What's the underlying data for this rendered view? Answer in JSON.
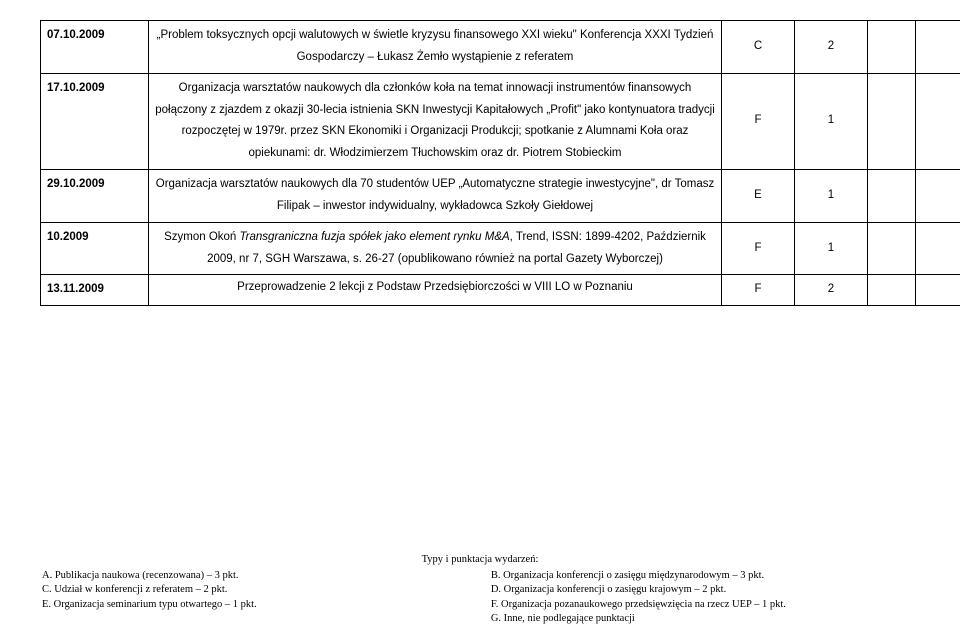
{
  "rows": [
    {
      "date": "07.10.2009",
      "desc": "„Problem toksycznych opcji walutowych w świetle kryzysu finansowego XXI wieku\" Konferencja XXXI Tydzień Gospodarczy – Łukasz Żemło wystąpienie z referatem",
      "code": "C",
      "pts": "2"
    },
    {
      "date": "17.10.2009",
      "desc": "Organizacja warsztatów naukowych dla członków koła na temat innowacji instrumentów finansowych połączony z zjazdem z okazji 30-lecia istnienia SKN Inwestycji Kapitałowych „Profit\" jako kontynuatora tradycji rozpoczętej w 1979r. przez SKN Ekonomiki i Organizacji Produkcji; spotkanie z Alumnami Koła oraz opiekunami: dr. Włodzimierzem Tłuchowskim oraz dr. Piotrem Stobieckim",
      "code": "F",
      "pts": "1"
    },
    {
      "date": "29.10.2009",
      "desc": "Organizacja warsztatów naukowych dla 70 studentów UEP „Automatyczne strategie inwestycyjne\", dr Tomasz Filipak – inwestor indywidualny, wykładowca Szkoły Giełdowej",
      "code": "E",
      "pts": "1"
    },
    {
      "date": "10.2009",
      "desc_pre": "Szymon Okoń ",
      "desc_italic": "Transgraniczna fuzja spółek jako element rynku M&A",
      "desc_post": ", Trend, ISSN: 1899-4202, Październik 2009, nr 7, SGH Warszawa, s. 26-27 (opublikowano również na portal Gazety Wyborczej)",
      "code": "F",
      "pts": "1"
    },
    {
      "date": "13.11.2009",
      "desc": "Przeprowadzenie 2 lekcji z Podstaw Przedsiębiorczości w VIII LO w Poznaniu",
      "code": "F",
      "pts": "2"
    }
  ],
  "footer": {
    "title": "Typy i punktacja wydarzeń:",
    "left": [
      "A.   Publikacja naukowa (recenzowana) – 3 pkt.",
      "C.   Udział w konferencji z referatem – 2 pkt.",
      "E.   Organizacja seminarium typu otwartego – 1 pkt."
    ],
    "right": [
      "B.   Organizacja konferencji o zasięgu międzynarodowym – 3 pkt.",
      "D.   Organizacja konferencji o zasięgu krajowym – 2 pkt.",
      "F.   Organizacja pozanaukowego przedsięwzięcia na rzecz UEP – 1 pkt.",
      "G.   Inne, nie podlegające punktacji"
    ]
  }
}
